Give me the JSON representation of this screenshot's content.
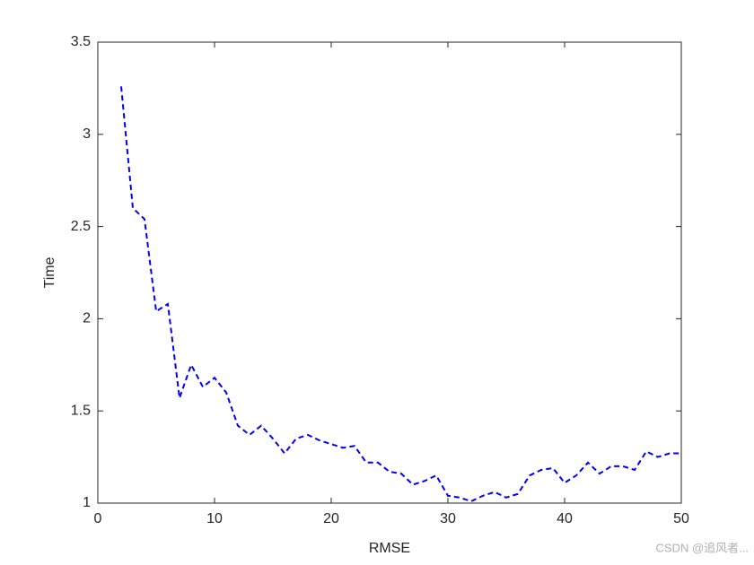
{
  "chart_data": {
    "type": "line",
    "x_label": "RMSE",
    "y_label": "Time",
    "x": [
      2,
      3,
      4,
      5,
      6,
      7,
      8,
      9,
      10,
      11,
      12,
      13,
      14,
      15,
      16,
      17,
      18,
      19,
      20,
      21,
      22,
      23,
      24,
      25,
      26,
      27,
      28,
      29,
      30,
      31,
      32,
      33,
      34,
      35,
      36,
      37,
      38,
      39,
      40,
      41,
      42,
      43,
      44,
      45,
      46,
      47,
      48,
      49,
      50
    ],
    "series": [
      {
        "color": "#0000ff",
        "line_style": "dashed",
        "values": [
          3.26,
          2.6,
          2.54,
          2.04,
          2.08,
          1.57,
          1.75,
          1.63,
          1.68,
          1.6,
          1.42,
          1.37,
          1.42,
          1.35,
          1.27,
          1.35,
          1.37,
          1.34,
          1.32,
          1.3,
          1.31,
          1.22,
          1.22,
          1.17,
          1.16,
          1.1,
          1.12,
          1.15,
          1.04,
          1.03,
          1.01,
          1.04,
          1.06,
          1.03,
          1.05,
          1.15,
          1.18,
          1.19,
          1.11,
          1.15,
          1.22,
          1.16,
          1.2,
          1.2,
          1.18,
          1.28,
          1.25,
          1.27,
          1.27
        ]
      }
    ],
    "xlim": [
      0,
      50
    ],
    "xticks": [
      0,
      10,
      20,
      30,
      40,
      50
    ],
    "ylim": [
      1,
      3.5
    ],
    "yticks": [
      1,
      1.5,
      2,
      2.5,
      3,
      3.5
    ],
    "grid": false
  },
  "watermark": "CSDN @追风者..."
}
